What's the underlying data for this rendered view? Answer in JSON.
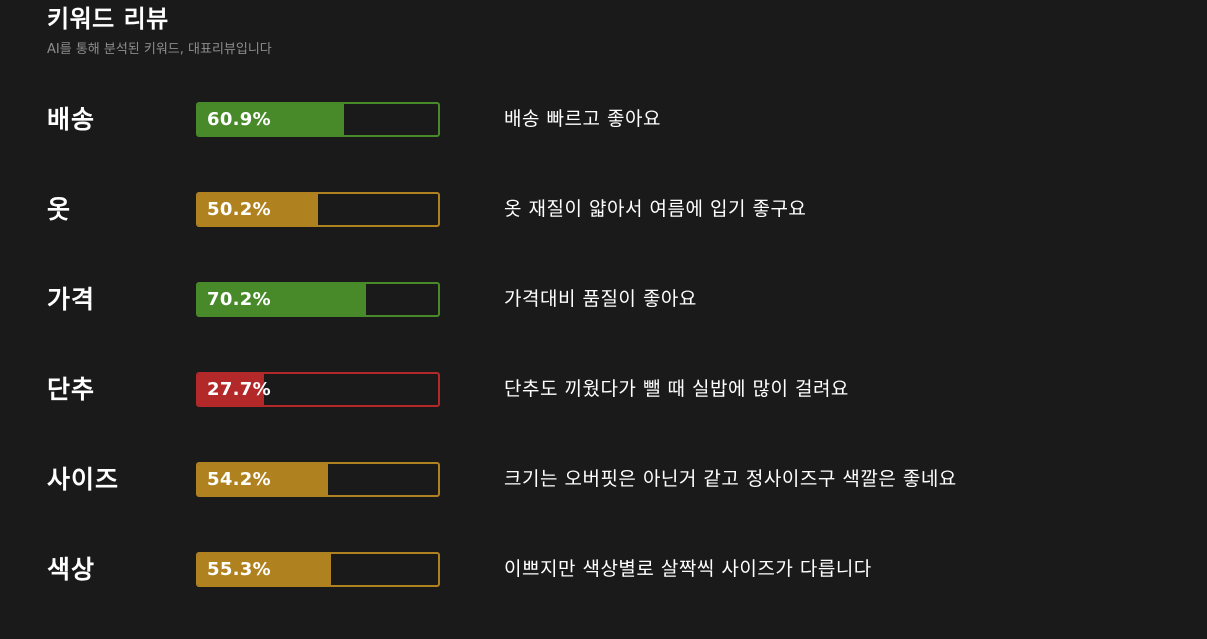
{
  "header": {
    "title": "키워드 리뷰",
    "subtitle": "AI를 통해 분석된 키워드, 대표리뷰입니다"
  },
  "rows": [
    {
      "keyword": "배송",
      "percent_label": "60.9%",
      "percent": 60.9,
      "color": "#488a2a",
      "review": "배송 빠르고 좋아요"
    },
    {
      "keyword": "옷",
      "percent_label": "50.2%",
      "percent": 50.2,
      "color": "#b0811f",
      "review": "옷 재질이 얇아서 여름에 입기 좋구요"
    },
    {
      "keyword": "가격",
      "percent_label": "70.2%",
      "percent": 70.2,
      "color": "#488a2a",
      "review": "가격대비 품질이 좋아요"
    },
    {
      "keyword": "단추",
      "percent_label": "27.7%",
      "percent": 27.7,
      "color": "#b32828",
      "review": "단추도 끼웠다가 뺄 때 실밥에 많이 걸려요"
    },
    {
      "keyword": "사이즈",
      "percent_label": "54.2%",
      "percent": 54.2,
      "color": "#b0811f",
      "review": "크기는 오버핏은 아닌거 같고 정사이즈구 색깔은 좋네요"
    },
    {
      "keyword": "색상",
      "percent_label": "55.3%",
      "percent": 55.3,
      "color": "#b0811f",
      "review": "이쁘지만 색상별로 살짝씩 사이즈가 다릅니다"
    }
  ]
}
